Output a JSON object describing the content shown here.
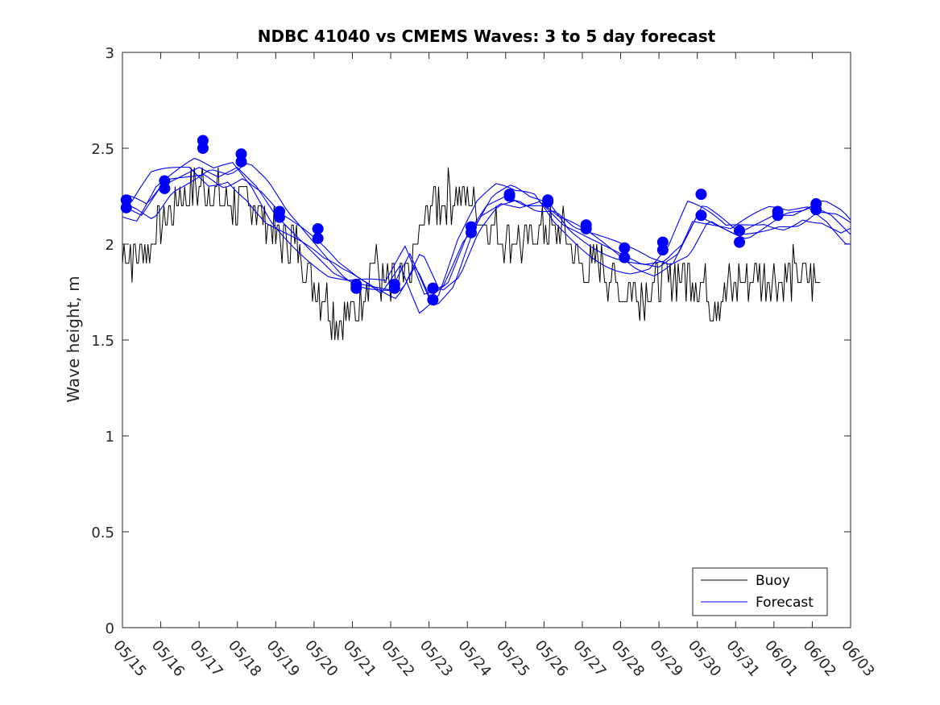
{
  "chart_data": {
    "type": "line",
    "title": "NDBC 41040 vs CMEMS Waves: 3 to 5 day forecast",
    "xlabel": "",
    "ylabel": "Wave height, m",
    "xlim": [
      "05/15",
      "06/03"
    ],
    "ylim": [
      0,
      3
    ],
    "x_ticks": [
      "05/15",
      "05/16",
      "05/17",
      "05/18",
      "05/19",
      "05/20",
      "05/21",
      "05/22",
      "05/23",
      "05/24",
      "05/25",
      "05/26",
      "05/27",
      "05/28",
      "05/29",
      "05/30",
      "05/31",
      "06/01",
      "06/02",
      "06/03"
    ],
    "y_ticks": [
      "0",
      "0.5",
      "1",
      "1.5",
      "2",
      "2.5",
      "3"
    ],
    "legend": {
      "placement": "bottom-right",
      "entries": [
        "Buoy",
        "Forecast"
      ]
    },
    "grid": false,
    "colors": {
      "buoy": "#000000",
      "forecast": "#0000ff",
      "markers": "#0000ff"
    },
    "series": [
      {
        "name": "Buoy",
        "x": [
          0,
          0.5,
          1,
          1.5,
          2,
          2.5,
          3,
          3.5,
          4,
          4.5,
          5,
          5.5,
          6,
          6.5,
          7,
          7.5,
          8,
          8.5,
          9,
          9.5,
          10,
          10.5,
          11,
          11.5,
          12,
          12.5,
          13,
          13.5,
          14,
          14.5,
          15,
          15.5,
          16,
          16.5,
          17,
          17.5,
          18,
          18.2
        ],
        "values": [
          1.95,
          1.95,
          2.1,
          2.25,
          2.3,
          2.25,
          2.2,
          2.2,
          2.05,
          2.0,
          1.8,
          1.65,
          1.6,
          1.9,
          1.75,
          1.85,
          2.2,
          2.25,
          2.25,
          2.1,
          2.05,
          2.0,
          2.1,
          2.05,
          1.85,
          1.9,
          1.75,
          1.75,
          1.8,
          1.85,
          1.8,
          1.7,
          1.8,
          1.85,
          1.8,
          1.85,
          1.8,
          1.8
        ]
      },
      {
        "name": "Forecast",
        "x": [
          0,
          0.5,
          1,
          1.5,
          2,
          2.5,
          3,
          3.5,
          4,
          4.5,
          5,
          5.5,
          6,
          6.5,
          7,
          7.5,
          8,
          8.5,
          9,
          9.5,
          10,
          10.5,
          11,
          11.5,
          12,
          12.5,
          13,
          13.5,
          14,
          14.5,
          15,
          15.5,
          16,
          16.5,
          17,
          17.5,
          18,
          18.5,
          19
        ],
        "values": [
          2.2,
          2.15,
          2.3,
          2.35,
          2.4,
          2.35,
          2.4,
          2.3,
          2.15,
          2.05,
          1.95,
          1.85,
          1.8,
          1.78,
          1.76,
          1.95,
          1.72,
          1.8,
          2.05,
          2.2,
          2.25,
          2.2,
          2.2,
          2.1,
          2.05,
          2.0,
          1.95,
          1.9,
          1.88,
          1.95,
          2.15,
          2.1,
          2.05,
          2.1,
          2.15,
          2.15,
          2.2,
          2.15,
          2.05
        ]
      },
      {
        "name": "",
        "x": [
          0.1,
          1.1,
          2.1,
          3.1,
          4.1,
          5.1,
          6.1,
          7.1,
          8.1,
          9.1,
          10.1,
          11.1,
          12.1,
          13.1,
          14.1,
          15.1,
          16.1,
          17.1,
          18.1
        ],
        "values": [
          2.23,
          2.33,
          2.54,
          2.47,
          2.17,
          2.08,
          1.79,
          1.79,
          1.77,
          2.09,
          2.26,
          2.23,
          2.1,
          1.98,
          2.01,
          2.26,
          2.07,
          2.17,
          2.21
        ]
      },
      {
        "name": "",
        "x": [
          0.1,
          1.1,
          2.1,
          3.1,
          4.1,
          5.1,
          6.1,
          7.1,
          8.1,
          9.1,
          10.1,
          11.1,
          12.1,
          13.1,
          14.1,
          15.1,
          16.1,
          17.1,
          18.1
        ],
        "values": [
          2.19,
          2.29,
          2.5,
          2.43,
          2.14,
          2.03,
          1.77,
          1.77,
          1.71,
          2.06,
          2.25,
          2.22,
          2.08,
          1.93,
          1.97,
          2.15,
          2.01,
          2.15,
          2.18
        ]
      }
    ]
  }
}
